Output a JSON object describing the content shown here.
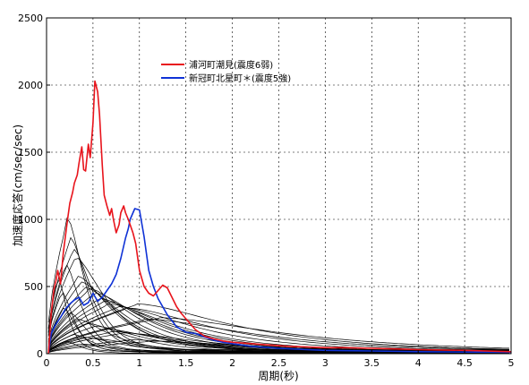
{
  "chart_data": {
    "type": "line",
    "xlabel": "周期(秒)",
    "ylabel": "加速度応答(cm/sec/sec)",
    "xlim": [
      0,
      5
    ],
    "ylim": [
      0,
      2500
    ],
    "xticks": [
      "0",
      "0.5",
      "1",
      "1.5",
      "2",
      "2.5",
      "3",
      "3.5",
      "4",
      "4.5",
      "5"
    ],
    "yticks": [
      "0",
      "500",
      "1000",
      "1500",
      "2000",
      "2500"
    ],
    "grid": true,
    "legend_position": "top-center",
    "series": [
      {
        "name": "浦河町潮見(震度6弱)",
        "color": "#e8141c",
        "x": [
          0.02,
          0.05,
          0.08,
          0.1,
          0.12,
          0.15,
          0.18,
          0.2,
          0.23,
          0.25,
          0.28,
          0.3,
          0.33,
          0.35,
          0.38,
          0.4,
          0.42,
          0.45,
          0.47,
          0.5,
          0.52,
          0.55,
          0.57,
          0.6,
          0.62,
          0.65,
          0.68,
          0.7,
          0.72,
          0.75,
          0.78,
          0.8,
          0.83,
          0.85,
          0.88,
          0.9,
          0.93,
          0.96,
          1.0,
          1.05,
          1.1,
          1.15,
          1.2,
          1.25,
          1.3,
          1.35,
          1.4,
          1.45,
          1.5,
          1.55,
          1.6,
          1.7,
          1.8,
          1.9,
          2.0,
          2.2,
          2.4,
          2.6,
          2.8,
          3.0,
          3.2,
          3.5,
          3.8,
          4.0,
          4.5,
          5.0
        ],
        "y": [
          0,
          300,
          480,
          540,
          620,
          520,
          750,
          860,
          1020,
          1120,
          1200,
          1270,
          1330,
          1420,
          1540,
          1370,
          1360,
          1560,
          1460,
          1720,
          2030,
          1950,
          1780,
          1400,
          1180,
          1100,
          1030,
          1080,
          1000,
          900,
          960,
          1050,
          1100,
          1050,
          1000,
          960,
          900,
          820,
          620,
          500,
          450,
          430,
          470,
          510,
          490,
          420,
          350,
          300,
          260,
          220,
          180,
          130,
          110,
          95,
          85,
          75,
          65,
          55,
          50,
          45,
          45,
          40,
          35,
          30,
          25,
          15
        ]
      },
      {
        "name": "新冠町北星町＊(震度5強)",
        "color": "#0f32d6",
        "x": [
          0.02,
          0.05,
          0.1,
          0.15,
          0.2,
          0.25,
          0.3,
          0.35,
          0.4,
          0.45,
          0.5,
          0.55,
          0.6,
          0.65,
          0.7,
          0.75,
          0.8,
          0.85,
          0.88,
          0.9,
          0.95,
          1.0,
          1.05,
          1.1,
          1.15,
          1.2,
          1.3,
          1.4,
          1.5,
          1.6,
          1.7,
          1.8,
          1.9,
          2.0,
          2.2,
          2.5,
          2.8,
          3.0,
          3.5,
          4.0,
          4.5,
          5.0
        ],
        "y": [
          0,
          150,
          220,
          270,
          330,
          370,
          400,
          420,
          360,
          380,
          450,
          390,
          420,
          470,
          520,
          590,
          710,
          860,
          930,
          1000,
          1080,
          1070,
          870,
          620,
          500,
          410,
          290,
          200,
          160,
          150,
          125,
          100,
          85,
          75,
          55,
          40,
          30,
          25,
          20,
          15,
          12,
          10
        ]
      }
    ],
    "background_series": [
      {
        "peak_x": 0.12,
        "peak_y": 560
      },
      {
        "peak_x": 0.16,
        "peak_y": 450
      },
      {
        "peak_x": 0.2,
        "peak_y": 650
      },
      {
        "peak_x": 0.22,
        "peak_y": 980
      },
      {
        "peak_x": 0.25,
        "peak_y": 840
      },
      {
        "peak_x": 0.28,
        "peak_y": 760
      },
      {
        "peak_x": 0.3,
        "peak_y": 700
      },
      {
        "peak_x": 0.33,
        "peak_y": 560
      },
      {
        "peak_x": 0.36,
        "peak_y": 520
      },
      {
        "peak_x": 0.4,
        "peak_y": 480
      },
      {
        "peak_x": 0.45,
        "peak_y": 470
      },
      {
        "peak_x": 0.5,
        "peak_y": 440
      },
      {
        "peak_x": 0.55,
        "peak_y": 400
      },
      {
        "peak_x": 0.6,
        "peak_y": 380
      },
      {
        "peak_x": 0.65,
        "peak_y": 360
      },
      {
        "peak_x": 0.75,
        "peak_y": 340
      },
      {
        "peak_x": 0.85,
        "peak_y": 330
      },
      {
        "peak_x": 0.95,
        "peak_y": 360
      },
      {
        "peak_x": 1.05,
        "peak_y": 250
      },
      {
        "peak_x": 1.2,
        "peak_y": 260
      },
      {
        "peak_x": 0.18,
        "peak_y": 330
      },
      {
        "peak_x": 0.24,
        "peak_y": 300
      },
      {
        "peak_x": 0.32,
        "peak_y": 250
      },
      {
        "peak_x": 0.42,
        "peak_y": 220
      },
      {
        "peak_x": 0.5,
        "peak_y": 200
      },
      {
        "peak_x": 0.6,
        "peak_y": 180
      },
      {
        "peak_x": 0.7,
        "peak_y": 160
      },
      {
        "peak_x": 0.8,
        "peak_y": 150
      },
      {
        "peak_x": 0.28,
        "peak_y": 140
      },
      {
        "peak_x": 0.38,
        "peak_y": 120
      },
      {
        "peak_x": 0.48,
        "peak_y": 110
      },
      {
        "peak_x": 0.2,
        "peak_y": 90
      },
      {
        "peak_x": 0.9,
        "peak_y": 100
      },
      {
        "peak_x": 1.1,
        "peak_y": 90
      },
      {
        "peak_x": 0.35,
        "peak_y": 70
      }
    ]
  }
}
